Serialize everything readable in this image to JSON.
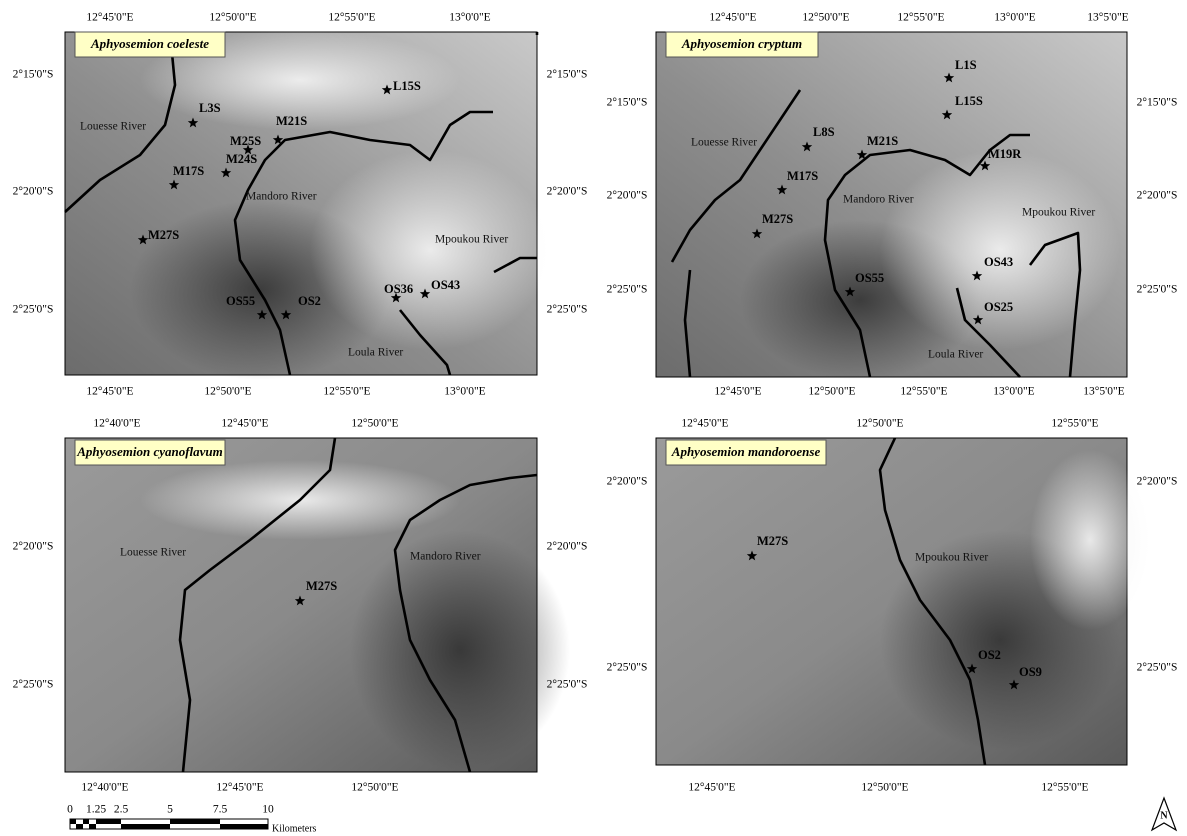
{
  "panels": [
    {
      "title": "Aphyosemion coeleste",
      "top_labels": [
        "12°45'0\"E",
        "12°50'0\"E",
        "12°55'0\"E",
        "13°0'0\"E"
      ],
      "bottom_labels": [
        "12°45'0\"E",
        "12°50'0\"E",
        "12°55'0\"E",
        "13°0'0\"E"
      ],
      "left_labels": [
        "2°15'0\"S",
        "2°20'0\"S",
        "2°25'0\"S"
      ],
      "right_labels": [
        "2°15'0\"S",
        "2°20'0\"S",
        "2°25'0\"S"
      ],
      "rivers": [
        "Louesse River",
        "Mandoro River",
        "Mpoukou River",
        "Loula River"
      ],
      "sites": [
        "L15S",
        "L3S",
        "M21S",
        "M25S",
        "M24S",
        "M17S",
        "M27S",
        "OS55",
        "OS2",
        "OS36",
        "OS43"
      ]
    },
    {
      "title": "Aphyosemion cryptum",
      "top_labels": [
        "12°45'0\"E",
        "12°50'0\"E",
        "12°55'0\"E",
        "13°0'0\"E",
        "13°5'0\"E"
      ],
      "bottom_labels": [
        "12°45'0\"E",
        "12°50'0\"E",
        "12°55'0\"E",
        "13°0'0\"E",
        "13°5'0\"E"
      ],
      "left_labels": [
        "2°15'0\"S",
        "2°20'0\"S",
        "2°25'0\"S"
      ],
      "right_labels": [
        "2°15'0\"S",
        "2°20'0\"S",
        "2°25'0\"S"
      ],
      "rivers": [
        "Louesse River",
        "Mandoro River",
        "Mpoukou River",
        "Loula River"
      ],
      "sites": [
        "L1S",
        "L15S",
        "L8S",
        "M21S",
        "M19R",
        "M17S",
        "M27S",
        "OS43",
        "OS55",
        "OS25"
      ]
    },
    {
      "title": "Aphyosemion cyanoflavum",
      "top_labels": [
        "12°40'0\"E",
        "12°45'0\"E",
        "12°50'0\"E"
      ],
      "bottom_labels": [
        "12°40'0\"E",
        "12°45'0\"E",
        "12°50'0\"E"
      ],
      "left_labels": [
        "2°20'0\"S",
        "2°25'0\"S"
      ],
      "right_labels": [
        "2°20'0\"S",
        "2°25'0\"S"
      ],
      "rivers": [
        "Louesse River",
        "Mandoro River"
      ],
      "sites": [
        "M27S"
      ]
    },
    {
      "title": "Aphyosemion mandoroense",
      "top_labels": [
        "12°45'0\"E",
        "12°50'0\"E",
        "12°55'0\"E"
      ],
      "bottom_labels": [
        "12°45'0\"E",
        "12°50'0\"E",
        "12°55'0\"E"
      ],
      "left_labels": [
        "2°20'0\"S",
        "2°25'0\"S"
      ],
      "right_labels": [
        "2°20'0\"S",
        "2°25'0\"S"
      ],
      "rivers": [
        "Mpoukou River"
      ],
      "sites": [
        "M27S",
        "OS2",
        "OS9"
      ]
    }
  ],
  "scale_bar": {
    "ticks": [
      "0",
      "1.25",
      "2.5",
      "5",
      "7.5",
      "10"
    ],
    "unit": "Kilometers"
  },
  "north_arrow": "N"
}
